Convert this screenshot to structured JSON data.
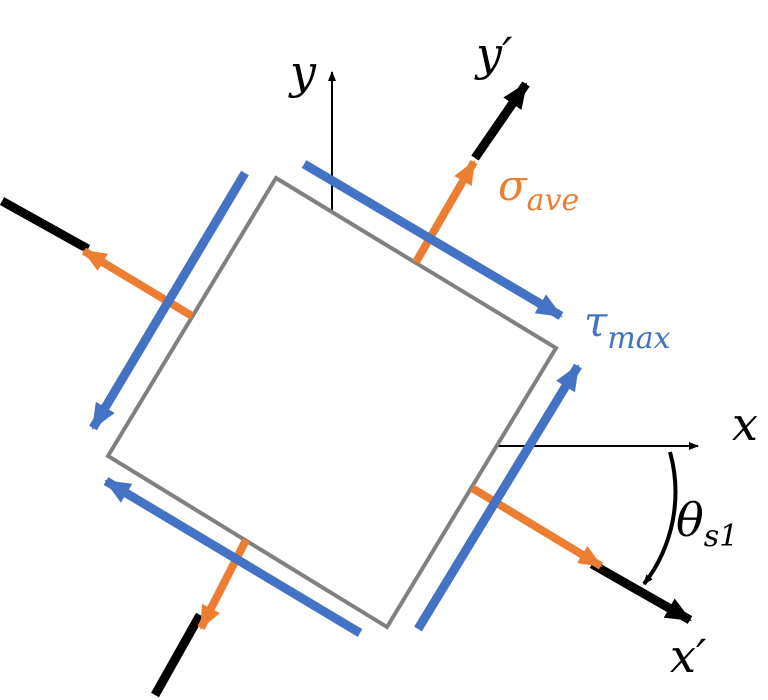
{
  "labels": {
    "y": "y",
    "y_prime": "y′",
    "x": "x",
    "x_prime": "x′",
    "sigma_symbol": "σ",
    "sigma_subscript": "ave",
    "tau_symbol": "τ",
    "tau_subscript": "max",
    "theta_symbol": "θ",
    "theta_subscript": "s1"
  },
  "colors": {
    "normal_stress": "#ED7D31",
    "shear_stress": "#4472C4",
    "element_outline": "#808080",
    "axes": "#000000"
  }
}
